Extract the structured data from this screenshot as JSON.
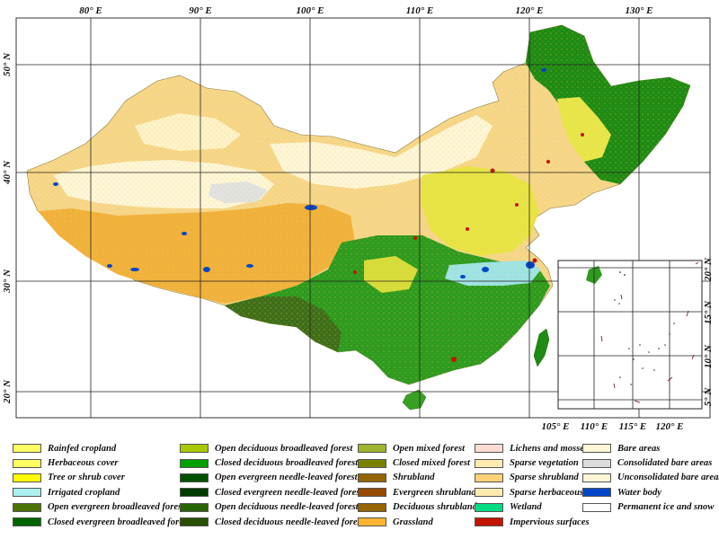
{
  "map": {
    "main_lon_ticks": [
      "80° E",
      "90° E",
      "100° E",
      "110° E",
      "120° E",
      "130° E"
    ],
    "main_lat_ticks": [
      "50° N",
      "40° N",
      "30° N",
      "20° N"
    ],
    "inset_lon_ticks": [
      "105° E",
      "110° E",
      "115° E",
      "120° E"
    ],
    "inset_lat_ticks": [
      "20° N",
      "15° N",
      "10° N",
      "5° N"
    ]
  },
  "legend": {
    "columns": [
      [
        {
          "label": "Rainfed cropland",
          "color": "#ffff64"
        },
        {
          "label": "Herbaceous cover",
          "color": "#ffff64"
        },
        {
          "label": "Tree or shrub cover",
          "color": "#ffff00"
        },
        {
          "label": "Irrigated cropland",
          "color": "#aaf0f0"
        },
        {
          "label": "Open evergreen broadleaved forest",
          "color": "#4c7300"
        },
        {
          "label": "Closed evergreen broadleaved forest",
          "color": "#006400"
        }
      ],
      [
        {
          "label": "Open deciduous broadleaved forest",
          "color": "#aac800"
        },
        {
          "label": "Closed deciduous broadleaved forest",
          "color": "#00a000"
        },
        {
          "label": "Open evergreen needle-leaved forest",
          "color": "#005000"
        },
        {
          "label": "Closed evergreen needle-leaved forest",
          "color": "#003c00"
        },
        {
          "label": "Open deciduous needle-leaved forest",
          "color": "#286400"
        },
        {
          "label": "Closed deciduous needle-leaved forest",
          "color": "#285000"
        }
      ],
      [
        {
          "label": "Open mixed forest",
          "color": "#a0b432"
        },
        {
          "label": "Closed mixed forest",
          "color": "#788200"
        },
        {
          "label": "Shrubland",
          "color": "#966400"
        },
        {
          "label": "Evergreen shrubland",
          "color": "#964b00"
        },
        {
          "label": "Deciduous shrubland",
          "color": "#966400"
        },
        {
          "label": "Grassland",
          "color": "#ffb432"
        }
      ],
      [
        {
          "label": "Lichens and mosses",
          "color": "#ffdcd2"
        },
        {
          "label": "Sparse vegetation",
          "color": "#ffebaf"
        },
        {
          "label": "Sparse shrubland",
          "color": "#ffd278"
        },
        {
          "label": "Sparse herbaceous",
          "color": "#ffebaf"
        },
        {
          "label": "Wetland",
          "color": "#00dc82"
        },
        {
          "label": "Impervious surfaces",
          "color": "#c31400"
        }
      ],
      [
        {
          "label": "Bare areas",
          "color": "#fff5d7"
        },
        {
          "label": "Consolidated bare areas",
          "color": "#dcdcdc"
        },
        {
          "label": "Unconsolidated bare areas",
          "color": "#fff5d7"
        },
        {
          "label": "Water body",
          "color": "#0046c8"
        },
        {
          "label": "Permanent ice and snow",
          "color": "#ffffff"
        }
      ]
    ]
  }
}
